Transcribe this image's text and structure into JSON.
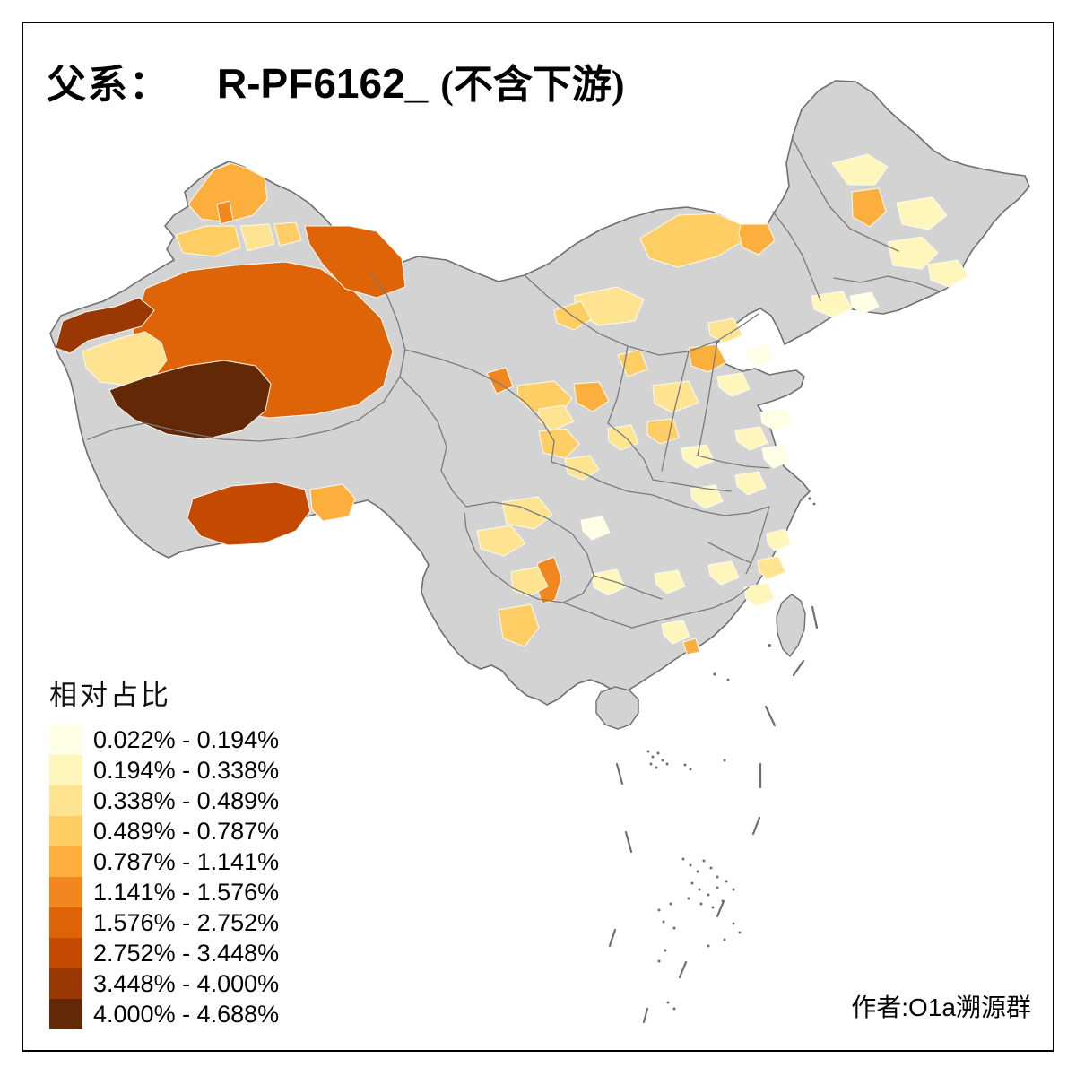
{
  "title": {
    "prefix": "父系：",
    "haplogroup": "R-PF6162_",
    "suffix": "(不含下游)"
  },
  "legend": {
    "title": "相对占比",
    "classes": [
      {
        "label": "0.022% - 0.194%",
        "color": "#FFFFE5"
      },
      {
        "label": "0.194% - 0.338%",
        "color": "#FEF6BA"
      },
      {
        "label": "0.338% - 0.489%",
        "color": "#FEE391"
      },
      {
        "label": "0.489% - 0.787%",
        "color": "#FECE65"
      },
      {
        "label": "0.787% - 1.141%",
        "color": "#FDAF3D"
      },
      {
        "label": "1.141% - 1.576%",
        "color": "#F2871F"
      },
      {
        "label": "1.576% - 2.752%",
        "color": "#DE6407"
      },
      {
        "label": "2.752% - 3.448%",
        "color": "#C44A02"
      },
      {
        "label": "3.448% - 4.000%",
        "color": "#9A3803"
      },
      {
        "label": "4.000% - 4.688%",
        "color": "#632806"
      }
    ]
  },
  "attribution": "作者:O1a溯源群",
  "map": {
    "base_fill": "#D3D3D3",
    "boundary_color": "#6E6E6E",
    "province_line": "#7A7A7A",
    "island_dash_color": "#6E6E6E",
    "background": "#FFFFFF",
    "frame_color": "#000000",
    "regions": {
      "altay-north": 4,
      "burqin": 5,
      "tacheng": 3,
      "bole": 2,
      "urumqi": 3,
      "hami-east": 6,
      "central-xinjiang": 6,
      "kizilsu": 8,
      "kashgar": 2,
      "hotan": 9,
      "shigatse": 7,
      "lhasa": 4,
      "jiayuguan": 5,
      "zhangye": 3,
      "haidong": 4,
      "xining": 2,
      "gannan": 3,
      "longnan": 2,
      "yinchuan": 3,
      "shaanbei": 2,
      "xinzhou": 4,
      "guanzhong": 3,
      "hanzhong": 2,
      "xilingol": 3,
      "hulunbuir-sw": 4,
      "baotou": 2,
      "bayannur": 3,
      "daqing": 4,
      "hlj-pale-1": 1,
      "hlj-pale-2": 1,
      "jilin-pale-1": 1,
      "jilin-pale-2": 1,
      "liaoning-pale-1": 1,
      "liaoning-pale-2": 0,
      "zhangjiakou": 2,
      "beijing": 0,
      "hebei": 1,
      "shandong-1": 0,
      "shandong-2": 1,
      "henan": 1,
      "jiangsu": 0,
      "anhui": 1,
      "hubei": 1,
      "ngawa": 2,
      "chengdu": 2,
      "chongqing": 0,
      "liangshan": 5,
      "zhaotong": 2,
      "kunming": 3,
      "guizhou": 1,
      "hunan": 1,
      "jiangxi": 1,
      "fujian-1": 1,
      "fujian-2": 2,
      "wenzhou": 1,
      "guangxi": 1,
      "pearl-delta": 4
    }
  }
}
